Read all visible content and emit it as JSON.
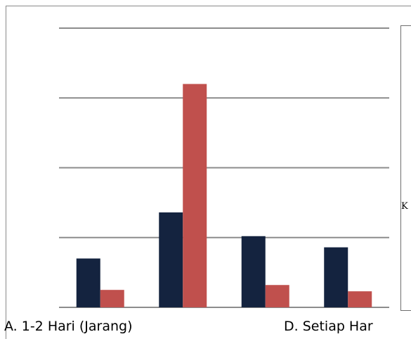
{
  "chart_data": {
    "type": "bar",
    "categories": [
      "A. 1-2 Hari (Jarang)",
      "",
      "",
      "D. Setiap Har"
    ],
    "series": [
      {
        "color": "#14233f",
        "values": [
          7,
          13.6,
          10.2,
          8.6
        ]
      },
      {
        "color": "#c0504d",
        "values": [
          2.5,
          32,
          3.2,
          2.3
        ]
      }
    ],
    "ylim": [
      0,
      40
    ],
    "grid": true,
    "legend_position": "right",
    "legend_text": "K"
  }
}
